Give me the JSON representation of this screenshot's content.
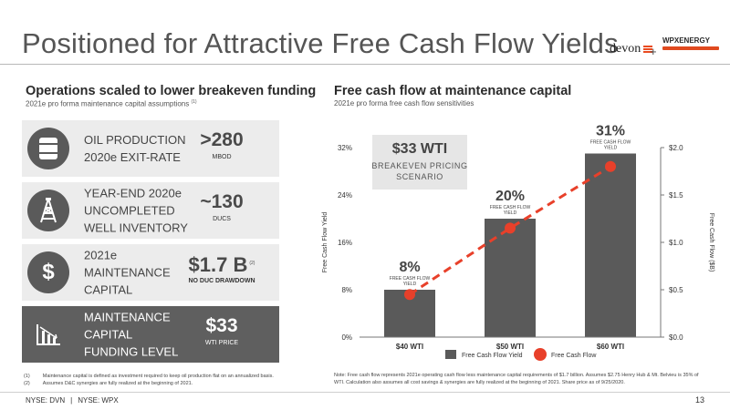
{
  "title": "Positioned for Attractive Free Cash Flow Yields",
  "logos": {
    "devon": "devon",
    "plus": "+",
    "wpx": "WPXENERGY"
  },
  "left": {
    "heading": "Operations scaled to lower breakeven funding",
    "subheading": "2021e pro forma maintenance capital assumptions",
    "subheading_note": "(1)",
    "cards": [
      {
        "label": "OIL PRODUCTION\n2020e EXIT-RATE",
        "value": ">280",
        "unit": "MBOD",
        "icon": "oil-barrel-icon"
      },
      {
        "label": "YEAR-END 2020e\nUNCOMPLETED\nWELL INVENTORY",
        "value": "~130",
        "unit": "DUCS",
        "icon": "oil-rig-icon"
      },
      {
        "label": "2021e\nMAINTENANCE\nCAPITAL",
        "value": "$1.7 B",
        "value_note": "(2)",
        "unit": "NO DUC DRAWDOWN",
        "icon": "dollar-icon"
      },
      {
        "label": "MAINTENANCE\nCAPITAL\nFUNDING LEVEL",
        "value": "$33",
        "unit": "WTI PRICE",
        "icon": "declining-chart-icon"
      }
    ],
    "footnotes": [
      {
        "num": "(1)",
        "text": "Maintenance capital is defined as investment required to keep oil production flat on an annualized basis."
      },
      {
        "num": "(2)",
        "text": "Assumes D&C synergies are fully realized at the beginning of 2021."
      }
    ]
  },
  "right": {
    "heading": "Free cash flow at maintenance capital",
    "subheading": "2021e pro forma free cash flow sensitivities",
    "note": "Note: Free cash flow represents 2021e operating cash flow less maintenance capital requirements of $1.7 billion. Assumes $2.75 Henry Hub & Mt. Belvieu is 35% of WTI. Calculation also assumes all cost savings & synergies are fully realized at the beginning of 2021. Share price as of 9/25/2020."
  },
  "chart_data": {
    "type": "bar",
    "categories": [
      "$40 WTI",
      "$50 WTI",
      "$60 WTI"
    ],
    "series": [
      {
        "name": "Free Cash Flow Yield",
        "type": "bar",
        "axis": "left",
        "values": [
          8,
          20,
          31
        ],
        "color": "#5a5a5a"
      },
      {
        "name": "Free Cash Flow",
        "type": "line",
        "axis": "right",
        "values": [
          0.45,
          1.15,
          1.8
        ],
        "color": "#e8402a"
      }
    ],
    "bar_labels": [
      "8%",
      "20%",
      "31%"
    ],
    "bar_sublabel": "FREE CASH FLOW\nYIELD",
    "ylabel": "Free Cash Flow Yield",
    "y2label": "Free Cash Flow ($B)",
    "ylim": [
      0,
      32
    ],
    "yticks": [
      "0%",
      "8%",
      "16%",
      "24%",
      "32%"
    ],
    "y2lim": [
      0,
      2.0
    ],
    "y2ticks": [
      "$0.0",
      "$0.5",
      "$1.0",
      "$1.5",
      "$2.0"
    ],
    "callout": {
      "title": "$33 WTI",
      "text": "BREAKEVEN PRICING\nSCENARIO"
    },
    "legend_position": "bottom"
  },
  "footer": {
    "tickers": [
      "NYSE: DVN",
      "NYSE: WPX"
    ],
    "separator": "|",
    "page": "13"
  }
}
